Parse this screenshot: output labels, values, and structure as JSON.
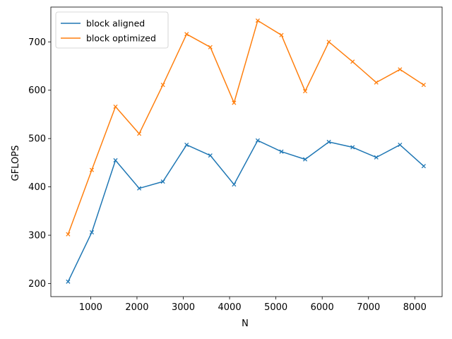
{
  "chart_data": {
    "type": "line",
    "xlabel": "N",
    "ylabel": "GFLOPS",
    "xlim": [
      140,
      8590
    ],
    "ylim": [
      173,
      772
    ],
    "xticks": [
      1000,
      2000,
      3000,
      4000,
      5000,
      6000,
      7000,
      8000
    ],
    "yticks": [
      200,
      300,
      400,
      500,
      600,
      700
    ],
    "grid": false,
    "legend": "top-left",
    "x": [
      512,
      1024,
      1536,
      2048,
      2560,
      3072,
      3584,
      4096,
      4608,
      5120,
      5632,
      6144,
      6656,
      7168,
      7680,
      8192
    ],
    "series": [
      {
        "name": "block aligned",
        "color": "#1f77b4",
        "marker": "x",
        "values": [
          204,
          306,
          455,
          397,
          411,
          487,
          465,
          405,
          496,
          473,
          457,
          493,
          482,
          461,
          487,
          443
        ]
      },
      {
        "name": "block optimized",
        "color": "#ff7f0e",
        "marker": "x",
        "values": [
          302,
          435,
          566,
          510,
          611,
          716,
          689,
          574,
          744,
          714,
          598,
          700,
          659,
          616,
          643,
          611
        ]
      }
    ]
  }
}
